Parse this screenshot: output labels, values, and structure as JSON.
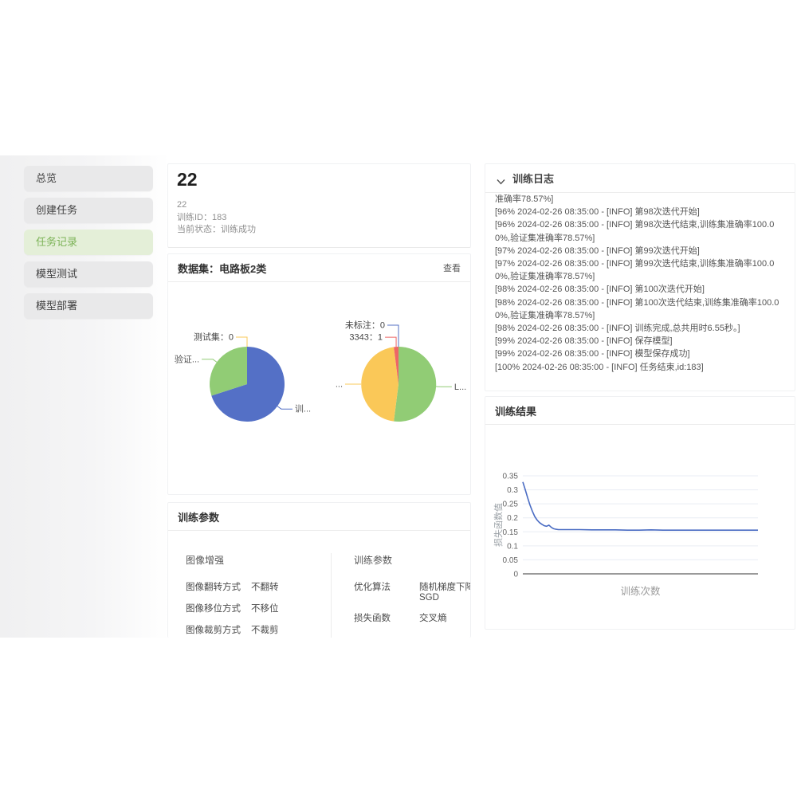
{
  "sidebar": {
    "items": [
      {
        "label": "总览",
        "active": false
      },
      {
        "label": "创建任务",
        "active": false
      },
      {
        "label": "任务记录",
        "active": true
      },
      {
        "label": "模型测试",
        "active": false
      },
      {
        "label": "模型部署",
        "active": false
      }
    ]
  },
  "header": {
    "title": "22",
    "sub_name": "22",
    "train_id": "训练ID：183",
    "status": "当前状态：训练成功"
  },
  "dataset": {
    "title": "数据集：电路板2类",
    "view_label": "查看"
  },
  "params": {
    "title": "训练参数",
    "groups": [
      {
        "title": "图像增强",
        "rows": [
          {
            "label": "图像翻转方式",
            "value": "不翻转"
          },
          {
            "label": "图像移位方式",
            "value": "不移位"
          },
          {
            "label": "图像裁剪方式",
            "value": "不裁剪"
          }
        ]
      },
      {
        "title": "训练参数",
        "rows": [
          {
            "label": "优化算法",
            "value": "随机梯度下降 SGD"
          },
          {
            "label": "损失函数",
            "value": "交叉熵"
          }
        ]
      }
    ]
  },
  "log": {
    "title": "训练日志",
    "lines": [
      "准确率78.57%]",
      "[96% 2024-02-26 08:35:00 - [INFO] 第98次迭代开始]",
      "[96% 2024-02-26 08:35:00 - [INFO] 第98次迭代结束,训练集准确率100.00%,验证集准确率78.57%]",
      "[97% 2024-02-26 08:35:00 - [INFO] 第99次迭代开始]",
      "[97% 2024-02-26 08:35:00 - [INFO] 第99次迭代结束,训练集准确率100.00%,验证集准确率78.57%]",
      "[98% 2024-02-26 08:35:00 - [INFO] 第100次迭代开始]",
      "[98% 2024-02-26 08:35:00 - [INFO] 第100次迭代结束,训练集准确率100.00%,验证集准确率78.57%]",
      "[98% 2024-02-26 08:35:00 - [INFO] 训练完成,总共用时6.55秒。]",
      "[99% 2024-02-26 08:35:00 - [INFO] 保存模型]",
      "[99% 2024-02-26 08:35:00 - [INFO] 模型保存成功]",
      "[100% 2024-02-26 08:35:00 - [INFO] 任务结束,id:183]"
    ]
  },
  "results": {
    "title": "训练结果"
  },
  "chart_data": [
    {
      "type": "pie",
      "name": "dataset-split",
      "slices": [
        {
          "label": "训...",
          "pct": 70,
          "color": "#5470c6"
        },
        {
          "label": "验证...",
          "pct": 30,
          "color": "#91cc75"
        },
        {
          "label": "测试集：0",
          "pct": 0,
          "color": "#fac858"
        }
      ]
    },
    {
      "type": "pie",
      "name": "label-distribution",
      "slices": [
        {
          "label": "L...",
          "pct": 52,
          "color": "#91cc75"
        },
        {
          "label": "...",
          "pct": 46,
          "color": "#fac858"
        },
        {
          "label": "3343：1",
          "pct": 2,
          "color": "#ee6666"
        },
        {
          "label": "未标注：0",
          "pct": 0,
          "color": "#5470c6"
        }
      ]
    },
    {
      "type": "line",
      "title": "",
      "xlabel": "训练次数",
      "ylabel": "损失函数值",
      "ylim": [
        0,
        0.35
      ],
      "yticks": [
        0,
        0.05,
        0.1,
        0.15,
        0.2,
        0.25,
        0.3,
        0.35
      ],
      "line_color": "#4a6cc3",
      "grid": true,
      "legend": "none",
      "x": [
        1,
        2,
        3,
        4,
        5,
        6,
        7,
        8,
        9,
        10,
        11,
        12,
        13,
        14,
        15,
        16,
        18,
        20,
        25,
        30,
        35,
        40,
        45,
        50,
        55,
        60,
        65,
        70,
        75,
        80,
        85,
        90,
        95,
        100
      ],
      "y": [
        0.328,
        0.301,
        0.272,
        0.246,
        0.224,
        0.205,
        0.192,
        0.183,
        0.177,
        0.172,
        0.17,
        0.174,
        0.166,
        0.161,
        0.159,
        0.158,
        0.158,
        0.158,
        0.158,
        0.157,
        0.157,
        0.157,
        0.156,
        0.156,
        0.157,
        0.156,
        0.156,
        0.156,
        0.156,
        0.156,
        0.156,
        0.156,
        0.156,
        0.156
      ]
    }
  ]
}
